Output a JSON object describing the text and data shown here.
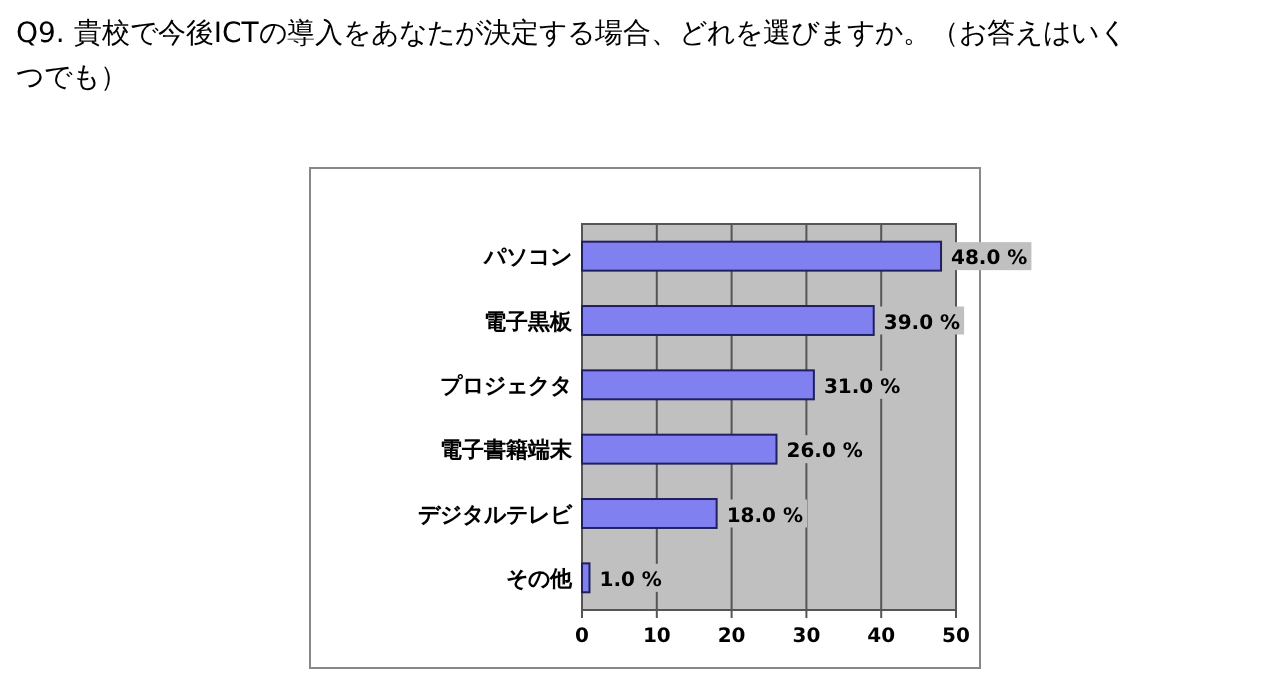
{
  "chart_data": {
    "type": "bar",
    "orientation": "horizontal",
    "title": "Q9. 貴校で今後ICTの導入をあなたが決定する場合、どれを選びますか。（お答えはいくつでも）",
    "categories": [
      "パソコン",
      "電子黒板",
      "プロジェクタ",
      "電子書籍端末",
      "デジタルテレビ",
      "その他"
    ],
    "values": [
      48.0,
      39.0,
      31.0,
      26.0,
      18.0,
      1.0
    ],
    "value_labels": [
      "48.0 %",
      "39.0 %",
      "31.0 %",
      "26.0 %",
      "18.0 %",
      "1.0 %"
    ],
    "color": "#8080f0",
    "xlim": [
      0,
      50
    ],
    "xticks": [
      0,
      10,
      20,
      30,
      40,
      50
    ],
    "grid": "x"
  }
}
